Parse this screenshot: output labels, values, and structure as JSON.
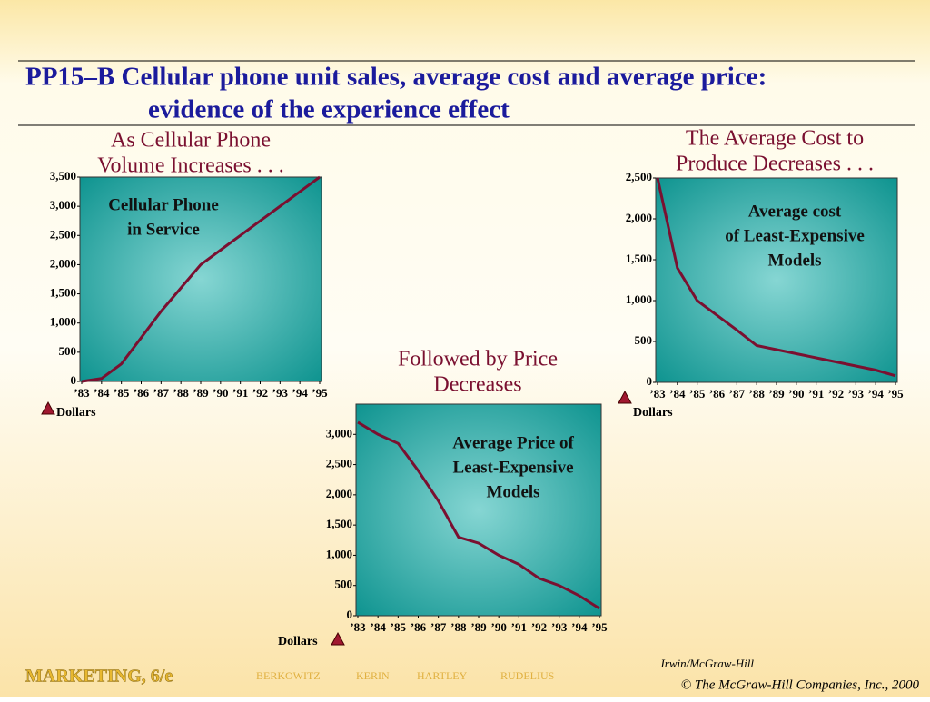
{
  "slide": {
    "title": [
      "PP15–B  Cellular phone unit sales, average cost and average price:",
      "evidence of the experience effect"
    ],
    "footer_left": "MARKETING, 6/e",
    "authors": [
      "BERKOWITZ",
      "KERIN",
      "HARTLEY",
      "RUDELIUS"
    ],
    "publisher": "Irwin/McGraw-Hill",
    "copyright": "© The McGraw-Hill Companies, Inc., 2000"
  },
  "chart_data": [
    {
      "type": "line",
      "title": [
        "As Cellular Phone",
        "Volume Increases . . ."
      ],
      "annotation": [
        "Cellular Phone",
        "in Service"
      ],
      "y_label": "Dollars",
      "categories": [
        "’83",
        "’84",
        "’85",
        "’86",
        "’87",
        "’88",
        "’89",
        "’90",
        "’91",
        "’92",
        "’93",
        "’94",
        "’95"
      ],
      "series": [
        {
          "name": "Cellular Phone in Service",
          "color": "#7a1030",
          "values": [
            0,
            50,
            300,
            750,
            1200,
            1600,
            2000,
            2250,
            2500,
            2750,
            3000,
            3250,
            3500
          ]
        }
      ],
      "ylim": [
        0,
        3500
      ],
      "yticks": [
        0,
        500,
        {
          "value": 1000,
          "label": "1,000"
        },
        {
          "value": 1500,
          "label": "1,500"
        },
        {
          "value": 2000,
          "label": "2,000"
        },
        {
          "value": 2500,
          "label": "2,500"
        },
        {
          "value": 3000,
          "label": "3,000"
        },
        {
          "value": 3500,
          "label": "3,500"
        }
      ]
    },
    {
      "type": "line",
      "title": [
        "The Average Cost to",
        "Produce Decreases . . ."
      ],
      "annotation": [
        "Average cost",
        "of Least-Expensive",
        "Models"
      ],
      "y_label": "Dollars",
      "categories": [
        "’83",
        "’84",
        "’85",
        "’86",
        "’87",
        "’88",
        "’89",
        "’90",
        "’91",
        "’92",
        "’93",
        "’94",
        "’95"
      ],
      "series": [
        {
          "name": "Average cost of Least-Expensive Models",
          "color": "#7a1030",
          "values": [
            2500,
            1400,
            1000,
            820,
            640,
            450,
            400,
            350,
            300,
            250,
            200,
            150,
            80
          ]
        }
      ],
      "ylim": [
        0,
        2500
      ],
      "yticks": [
        0,
        500,
        {
          "value": 1000,
          "label": "1,000"
        },
        {
          "value": 1500,
          "label": "1,500"
        },
        {
          "value": 2000,
          "label": "2,000"
        },
        {
          "value": 2500,
          "label": "2,500"
        }
      ]
    },
    {
      "type": "line",
      "title": [
        "Followed by Price",
        "Decreases"
      ],
      "annotation": [
        "Average Price of",
        "Least-Expensive",
        "Models"
      ],
      "y_label": "Dollars",
      "categories": [
        "’83",
        "’84",
        "’85",
        "’86",
        "’87",
        "’88",
        "’89",
        "’90",
        "’91",
        "’92",
        "’93",
        "’94",
        "’95"
      ],
      "series": [
        {
          "name": "Average Price of Least-Expensive Models",
          "color": "#7a1030",
          "values": [
            3200,
            3000,
            2850,
            2400,
            1900,
            1300,
            1200,
            1000,
            850,
            620,
            500,
            330,
            120
          ]
        }
      ],
      "ylim": [
        0,
        3500
      ],
      "yticks": [
        0,
        500,
        {
          "value": 1000,
          "label": "1,000"
        },
        {
          "value": 1500,
          "label": "1,500"
        },
        {
          "value": 2000,
          "label": "2,000"
        },
        {
          "value": 2500,
          "label": "2,500"
        },
        {
          "value": 3000,
          "label": "3,000"
        }
      ]
    }
  ]
}
